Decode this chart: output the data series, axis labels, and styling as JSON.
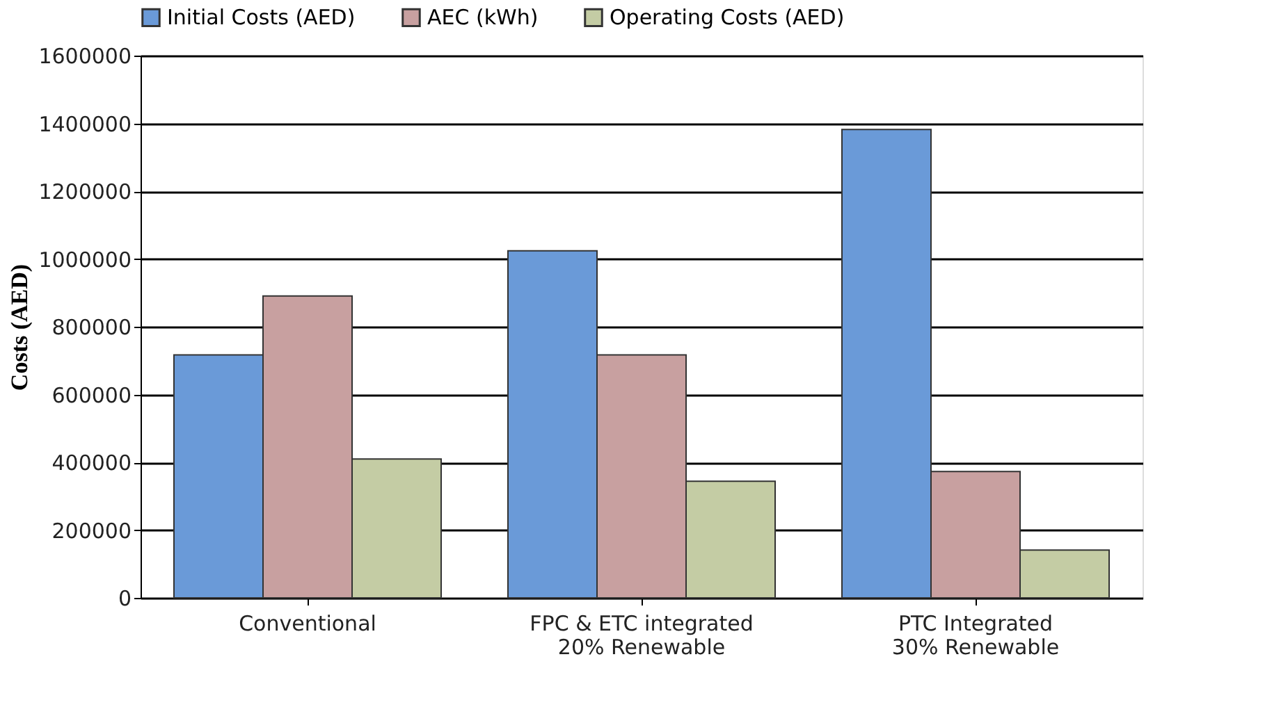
{
  "chart_data": {
    "type": "bar",
    "ylabel": "Costs (AED)",
    "categories": [
      "Conventional",
      "FPC & ETC integrated 20% Renewable",
      "PTC Integrated 30% Renewable"
    ],
    "series": [
      {
        "name": "Initial Costs (AED)",
        "color": "#6a9ad8",
        "values": [
          717000,
          1024000,
          1382000
        ]
      },
      {
        "name": "AEC (kWh)",
        "color": "#c8a0a0",
        "values": [
          891000,
          717000,
          373000
        ]
      },
      {
        "name": "Operating Costs (AED)",
        "color": "#c4cca4",
        "values": [
          410000,
          344000,
          141000
        ]
      }
    ],
    "ylim": [
      0,
      1600000
    ],
    "yticks": [
      0,
      200000,
      400000,
      600000,
      800000,
      1000000,
      1200000,
      1400000,
      1600000
    ],
    "grid": "y",
    "legend": "top"
  }
}
